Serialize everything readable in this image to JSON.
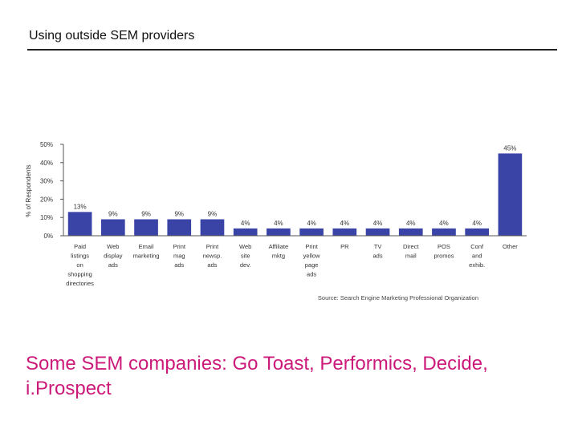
{
  "slide": {
    "title": "Using outside SEM providers",
    "caption": "Some SEM companies: Go Toast, Performics, Decide, i.Prospect"
  },
  "colors": {
    "bar": "#3a43a6",
    "caption": "#cc1a7a",
    "axis": "#555555"
  },
  "chart_data": {
    "type": "bar",
    "title": "",
    "xlabel": "",
    "ylabel": "% of Respondents",
    "ylim": [
      0,
      50
    ],
    "yticks": [
      "0%",
      "10%",
      "20%",
      "30%",
      "40%",
      "50%"
    ],
    "source": "Source: Search Engine Marketing Professional Organization",
    "categories": [
      [
        "Paid",
        "listings",
        "on",
        "shopping",
        "directories"
      ],
      [
        "Web",
        "display",
        "ads"
      ],
      [
        "Email",
        "marketing"
      ],
      [
        "Print",
        "mag",
        "ads"
      ],
      [
        "Print",
        "newsp.",
        "ads"
      ],
      [
        "Web",
        "site",
        "dev."
      ],
      [
        "Affiliate",
        "mktg"
      ],
      [
        "Print",
        "yellow",
        "page",
        "ads"
      ],
      [
        "PR"
      ],
      [
        "TV",
        "ads"
      ],
      [
        "Direct",
        "mail"
      ],
      [
        "POS",
        "promos"
      ],
      [
        "Conf",
        "and",
        "exhib."
      ],
      [
        "Other"
      ]
    ],
    "values": [
      13,
      9,
      9,
      9,
      9,
      4,
      4,
      4,
      4,
      4,
      4,
      4,
      4,
      45
    ],
    "value_labels": [
      "13%",
      "9%",
      "9%",
      "9%",
      "9%",
      "4%",
      "4%",
      "4%",
      "4%",
      "4%",
      "4%",
      "4%",
      "4%",
      "45%"
    ]
  }
}
